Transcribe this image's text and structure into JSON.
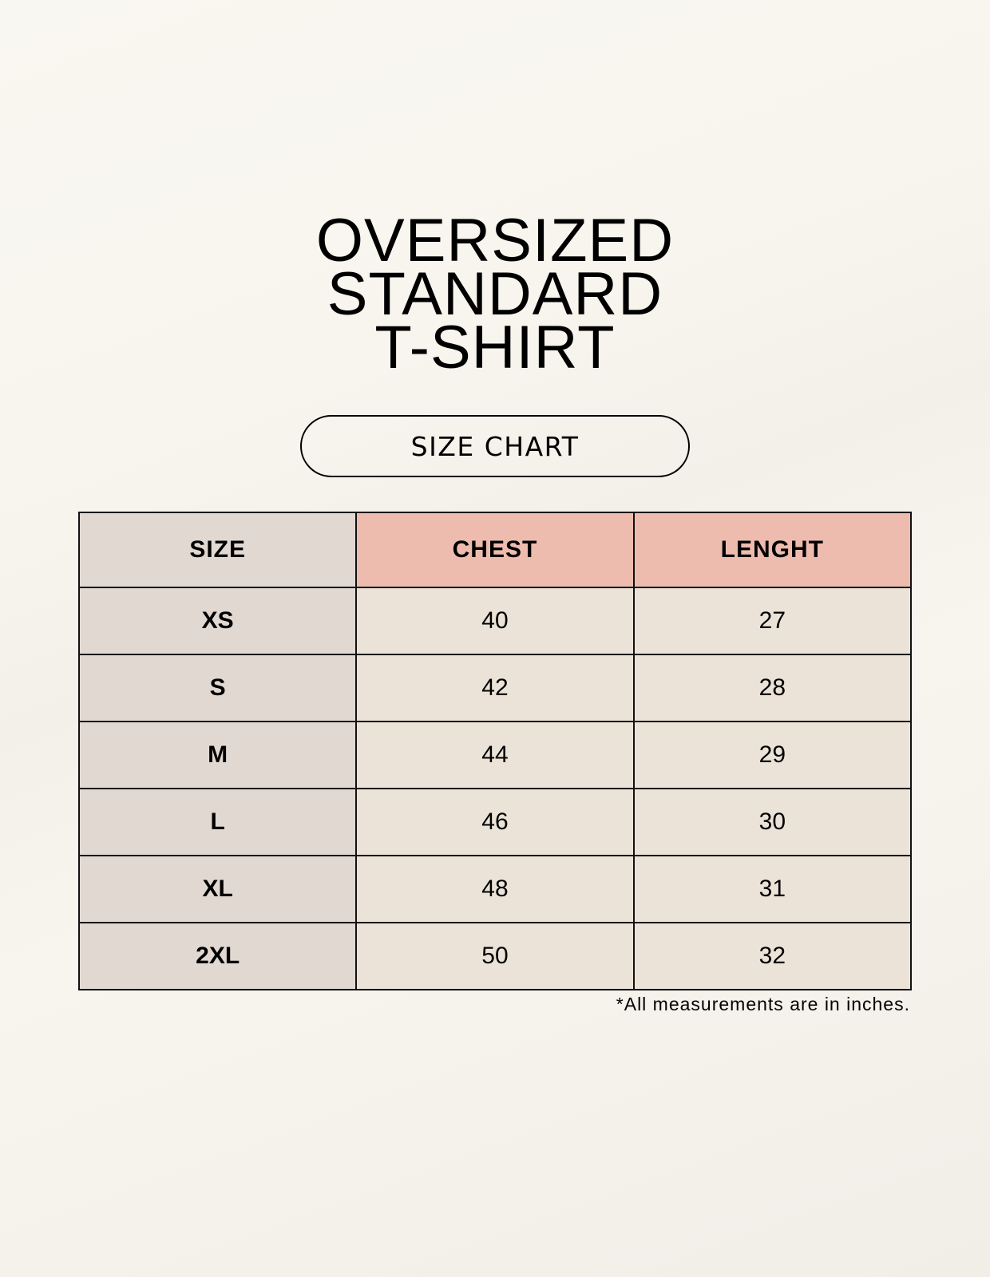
{
  "title_lines": [
    "OVERSIZED",
    "STANDARD",
    "T-SHIRT"
  ],
  "badge": "SIZE CHART",
  "table": {
    "headers": [
      "SIZE",
      "CHEST",
      "LENGHT"
    ],
    "rows": [
      [
        "XS",
        "40",
        "27"
      ],
      [
        "S",
        "42",
        "28"
      ],
      [
        "M",
        "44",
        "29"
      ],
      [
        "L",
        "46",
        "30"
      ],
      [
        "XL",
        "48",
        "31"
      ],
      [
        "2XL",
        "50",
        "32"
      ]
    ]
  },
  "footnote": "*All measurements are in inches.",
  "colors": {
    "size_column": "#e1d8d2",
    "header_accent": "#eebcae",
    "cell": "#ebe3d8"
  }
}
